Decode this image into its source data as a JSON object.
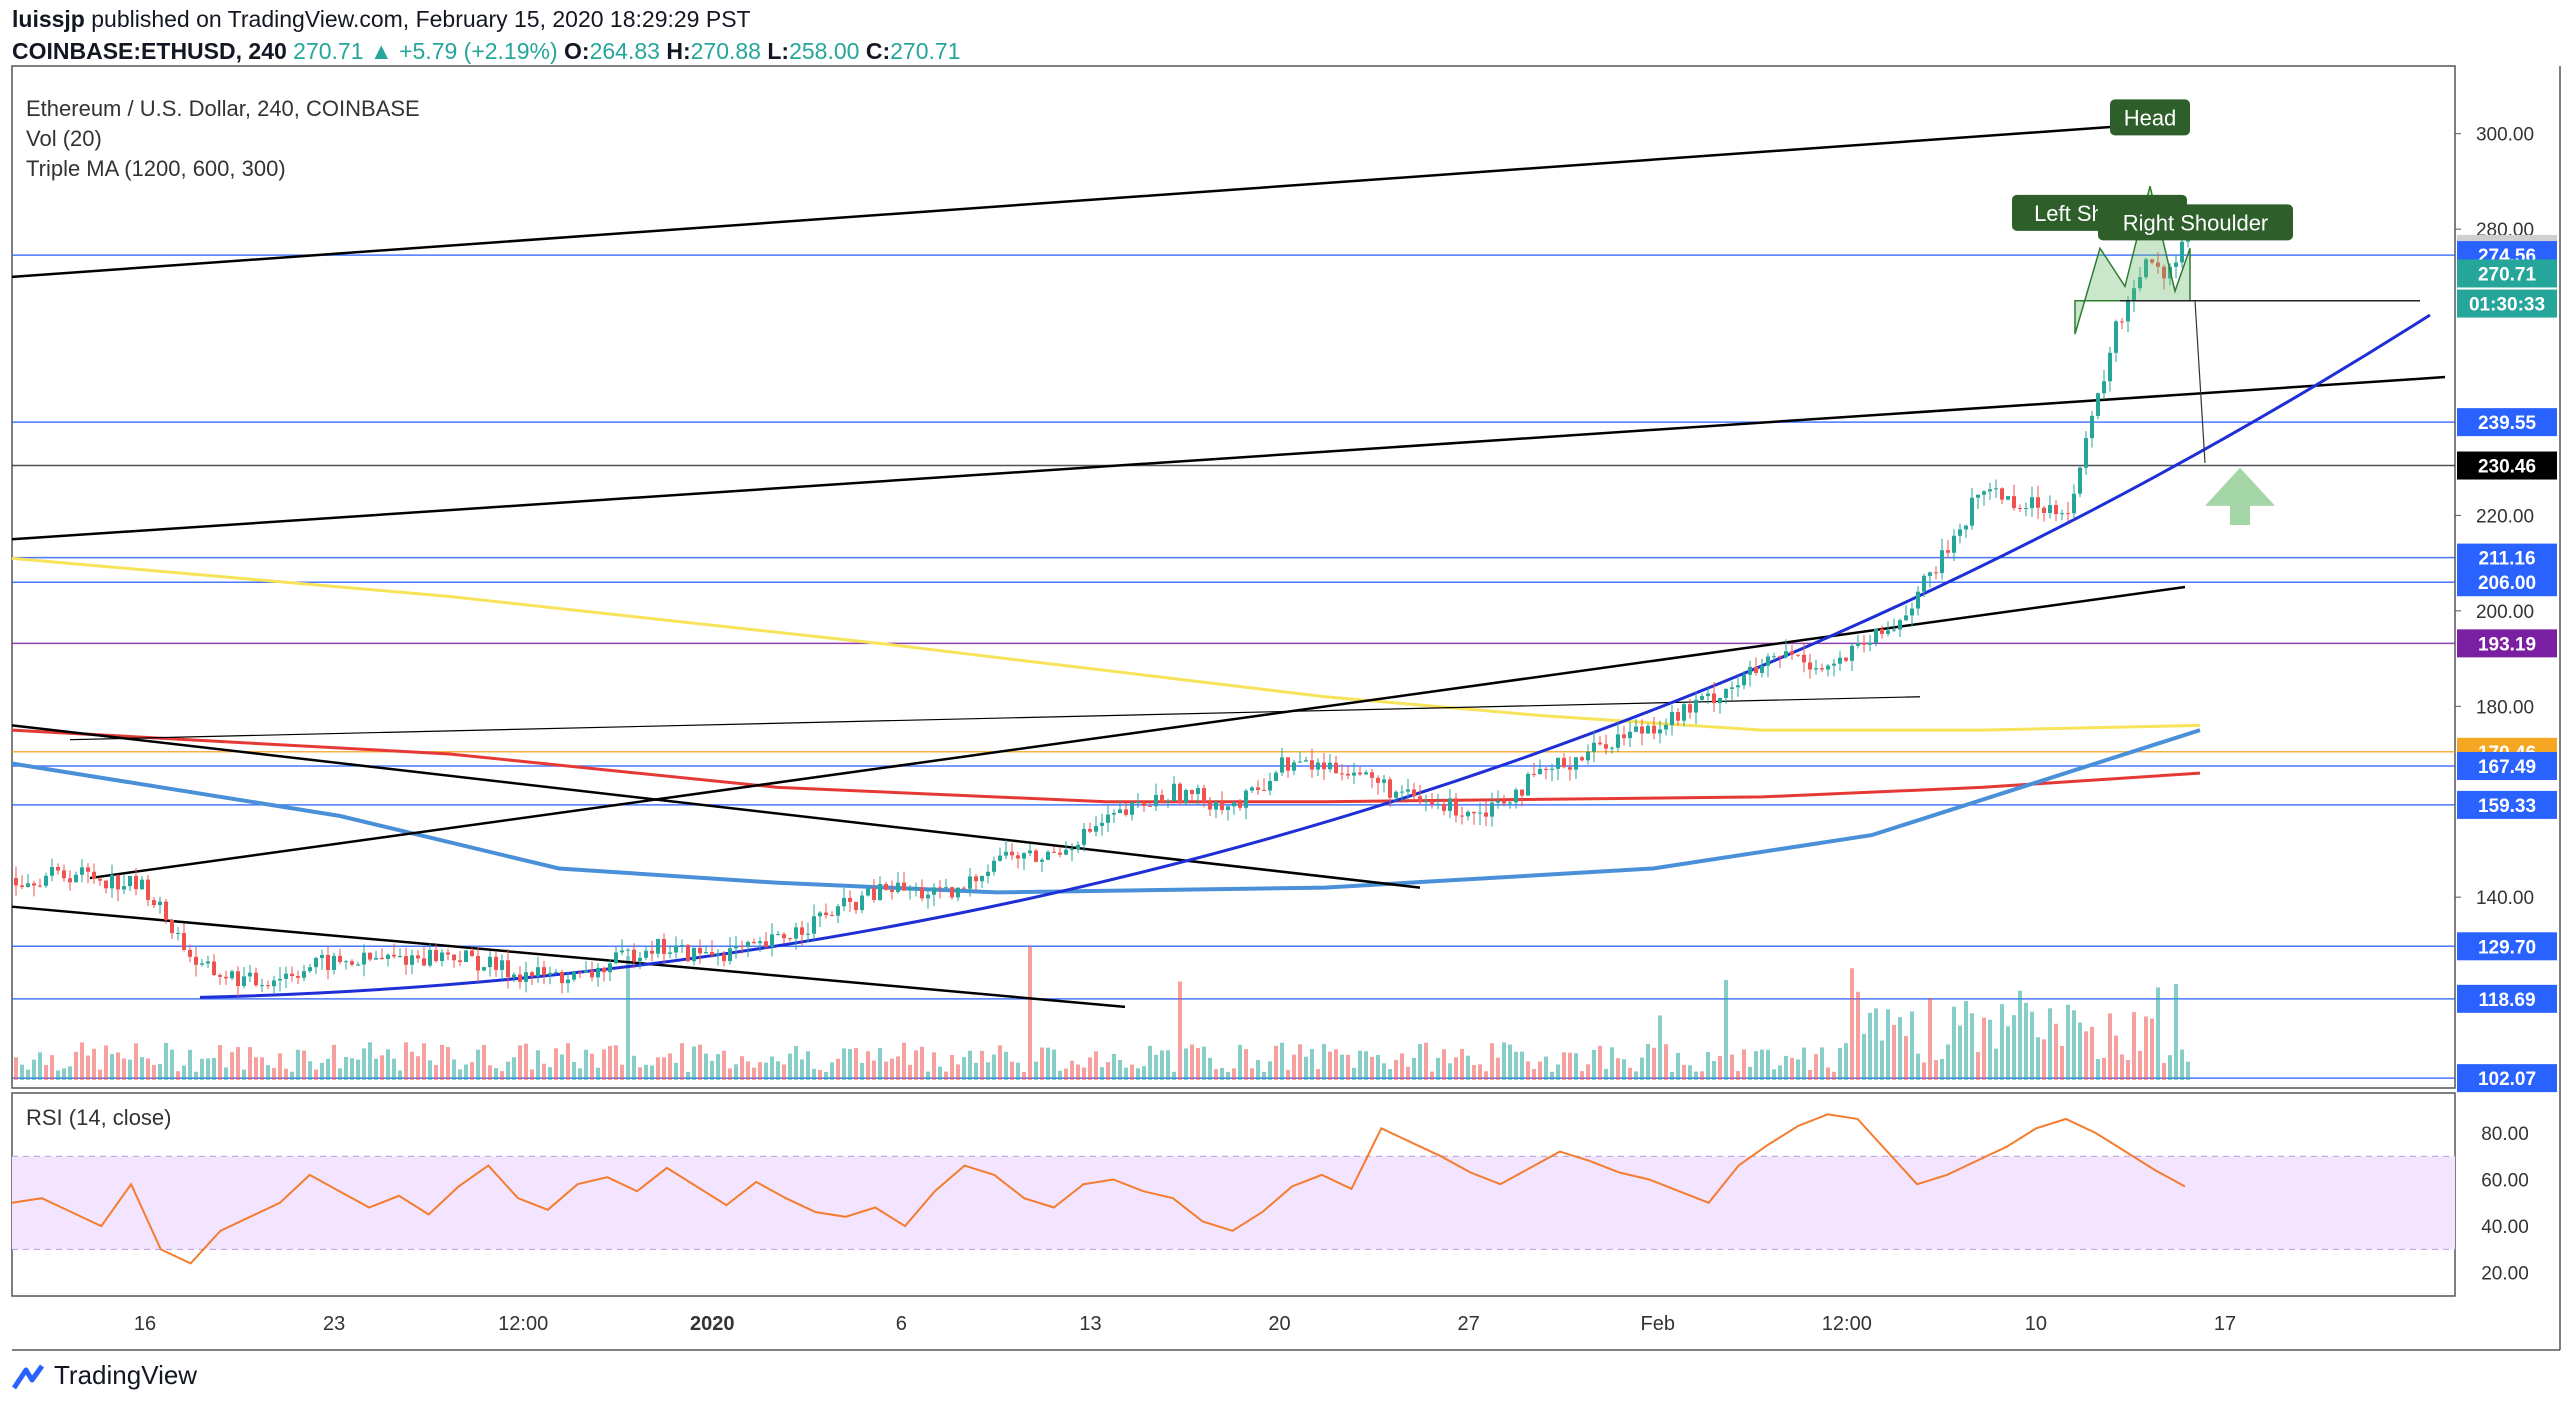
{
  "header": {
    "publisher": "luissjp",
    "published_text": "published on TradingView.com, February 15, 2020 18:29:29 PST",
    "symbol": "COINBASE:ETHUSD, 240",
    "last": "270.71",
    "change": "▲ +5.79 (+2.19%)",
    "o_label": "O:",
    "o": "264.83",
    "h_label": "H:",
    "h": "270.88",
    "l_label": "L:",
    "l": "258.00",
    "c_label": "C:",
    "c": "270.71"
  },
  "legend": {
    "title": "Ethereum / U.S. Dollar, 240, COINBASE",
    "vol": "Vol (20)",
    "ma": "Triple MA (1200, 600, 300)",
    "rsi": "RSI (14, close)"
  },
  "annotations": {
    "head": "Head",
    "left_shoulder": "Left Shoulder",
    "right_shoulder": "Right Shoulder"
  },
  "footer": {
    "brand": "TradingView"
  },
  "colors": {
    "up": "#26a69a",
    "down": "#ef5350",
    "blue_level": "#2962ff",
    "ma1200": "#f7e45a",
    "ma600": "#e53935",
    "ma300": "#4a90d9",
    "rsi": "#f57c2e",
    "rsi_band": "#f3e5ff",
    "trend": "#000000",
    "curve": "#1e2fd6",
    "annotation_bg": "#2e5e2a",
    "arrow": "#a5d6a7"
  },
  "chart_data": [
    {
      "type": "candlestick",
      "title": "Ethereum / U.S. Dollar, 240, COINBASE",
      "ylim": [
        100,
        310
      ],
      "x_ticks": [
        "16",
        "23",
        "12:00",
        "2020",
        "6",
        "13",
        "20",
        "27",
        "Feb",
        "12:00",
        "10",
        "17"
      ],
      "y_ticks": [
        300,
        280,
        220,
        200,
        180,
        140
      ],
      "price_labels": [
        {
          "value": 275.85,
          "text": "275.85",
          "style": "gray"
        },
        {
          "value": 274.56,
          "text": "274.56",
          "style": "blue"
        },
        {
          "value": 270.71,
          "text": "270.71",
          "style": "green"
        },
        {
          "value": 264.4,
          "text": "01:30:33",
          "style": "green"
        },
        {
          "value": 239.55,
          "text": "239.55",
          "style": "blue"
        },
        {
          "value": 230.46,
          "text": "230.46",
          "style": "black"
        },
        {
          "value": 211.16,
          "text": "211.16",
          "style": "blue"
        },
        {
          "value": 206.0,
          "text": "206.00",
          "style": "blue"
        },
        {
          "value": 193.19,
          "text": "193.19",
          "style": "purple"
        },
        {
          "value": 170.46,
          "text": "170.46",
          "style": "orange"
        },
        {
          "value": 167.49,
          "text": "167.49",
          "style": "blue"
        },
        {
          "value": 159.33,
          "text": "159.33",
          "style": "blue"
        },
        {
          "value": 129.7,
          "text": "129.70",
          "style": "blue"
        },
        {
          "value": 118.69,
          "text": "118.69",
          "style": "blue"
        },
        {
          "value": 102.07,
          "text": "102.07",
          "style": "blue"
        }
      ],
      "price_path": [
        [
          0,
          144
        ],
        [
          0.03,
          145
        ],
        [
          0.06,
          142
        ],
        [
          0.085,
          125
        ],
        [
          0.11,
          122
        ],
        [
          0.14,
          126
        ],
        [
          0.17,
          127
        ],
        [
          0.2,
          128
        ],
        [
          0.23,
          124
        ],
        [
          0.26,
          123
        ],
        [
          0.29,
          130
        ],
        [
          0.31,
          128
        ],
        [
          0.34,
          129
        ],
        [
          0.37,
          136
        ],
        [
          0.4,
          142
        ],
        [
          0.43,
          140
        ],
        [
          0.45,
          149
        ],
        [
          0.47,
          148
        ],
        [
          0.5,
          156
        ],
        [
          0.53,
          162
        ],
        [
          0.56,
          159
        ],
        [
          0.58,
          168
        ],
        [
          0.61,
          167
        ],
        [
          0.64,
          160
        ],
        [
          0.67,
          158
        ],
        [
          0.7,
          166
        ],
        [
          0.73,
          173
        ],
        [
          0.76,
          178
        ],
        [
          0.78,
          183
        ],
        [
          0.81,
          191
        ],
        [
          0.83,
          188
        ],
        [
          0.86,
          197
        ],
        [
          0.88,
          210
        ],
        [
          0.9,
          226
        ],
        [
          0.92,
          222
        ],
        [
          0.94,
          222
        ],
        [
          0.96,
          258
        ],
        [
          0.975,
          275
        ],
        [
          0.985,
          270
        ],
        [
          0.995,
          285
        ],
        [
          1.005,
          272
        ],
        [
          1.015,
          270.71
        ]
      ],
      "ma_1200": [
        [
          0,
          211
        ],
        [
          0.2,
          203
        ],
        [
          0.4,
          193
        ],
        [
          0.6,
          182
        ],
        [
          0.7,
          178
        ],
        [
          0.8,
          175
        ],
        [
          0.9,
          175
        ],
        [
          1.0,
          176
        ]
      ],
      "ma_600": [
        [
          0,
          175
        ],
        [
          0.2,
          170
        ],
        [
          0.35,
          163
        ],
        [
          0.5,
          160
        ],
        [
          0.6,
          160
        ],
        [
          0.8,
          161
        ],
        [
          0.9,
          163
        ],
        [
          1.0,
          166
        ]
      ],
      "ma_300": [
        [
          0,
          168
        ],
        [
          0.15,
          157
        ],
        [
          0.25,
          146
        ],
        [
          0.35,
          143
        ],
        [
          0.45,
          141
        ],
        [
          0.6,
          142
        ],
        [
          0.75,
          146
        ],
        [
          0.85,
          153
        ],
        [
          1.0,
          175
        ]
      ]
    },
    {
      "type": "area",
      "title": "RSI (14, close)",
      "ylim": [
        10,
        92
      ],
      "y_ticks": [
        80,
        60,
        40,
        20
      ],
      "band": [
        30,
        70
      ],
      "values": [
        50,
        52,
        46,
        40,
        58,
        30,
        24,
        38,
        44,
        50,
        62,
        55,
        48,
        53,
        45,
        57,
        66,
        52,
        47,
        58,
        61,
        55,
        65,
        57,
        49,
        59,
        52,
        46,
        44,
        48,
        40,
        55,
        66,
        62,
        52,
        48,
        58,
        60,
        55,
        52,
        42,
        38,
        46,
        57,
        62,
        56,
        82,
        76,
        70,
        63,
        58,
        65,
        72,
        68,
        63,
        60,
        55,
        50,
        66,
        75,
        83,
        88,
        86,
        72,
        58,
        62,
        68,
        74,
        82,
        86,
        80,
        72,
        64,
        57
      ]
    }
  ]
}
